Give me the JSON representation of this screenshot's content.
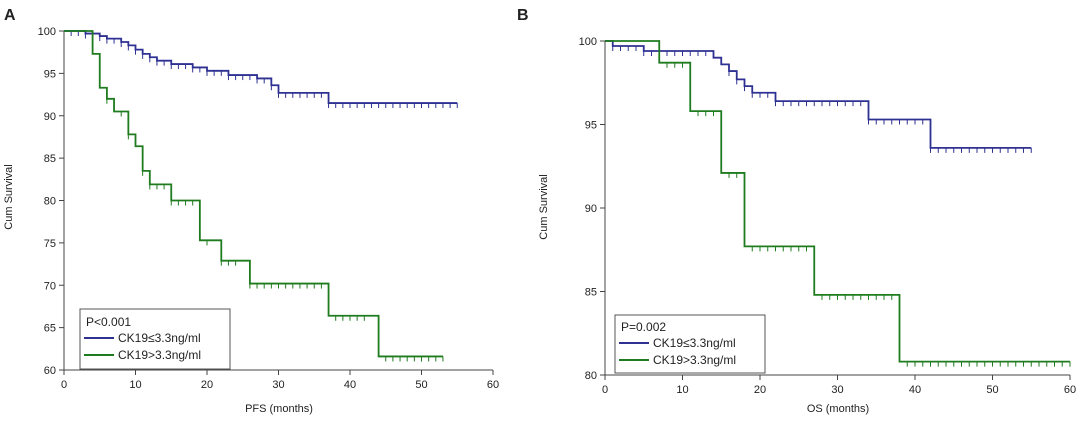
{
  "chart_data": [
    {
      "panel": "A",
      "type": "line",
      "title": "",
      "xlabel": "PFS (months)",
      "ylabel": "Cum Survival",
      "xlim": [
        0,
        60
      ],
      "ylim": [
        60,
        100
      ],
      "xticks": [
        0,
        10,
        20,
        30,
        40,
        50,
        60
      ],
      "yticks": [
        60,
        65,
        70,
        75,
        80,
        85,
        90,
        95,
        100
      ],
      "grid": false,
      "legend": {
        "placement": "bottom-left",
        "title": "P<0.001",
        "entries": [
          "CK19≤3.3ng/ml",
          "CK19>3.3ng/ml"
        ]
      },
      "series": [
        {
          "name": "CK19≤3.3ng/ml",
          "color": "#2e3192",
          "steps": [
            [
              0,
              100
            ],
            [
              3,
              99.7
            ],
            [
              5,
              99.4
            ],
            [
              6,
              99.1
            ],
            [
              8,
              98.7
            ],
            [
              9,
              98.3
            ],
            [
              10,
              97.8
            ],
            [
              11,
              97.3
            ],
            [
              12,
              96.9
            ],
            [
              13,
              96.5
            ],
            [
              15,
              96.1
            ],
            [
              18,
              95.7
            ],
            [
              20,
              95.3
            ],
            [
              23,
              94.8
            ],
            [
              27,
              94.4
            ],
            [
              29,
              93.6
            ],
            [
              30,
              92.7
            ],
            [
              37,
              91.5
            ],
            [
              55,
              91.5
            ]
          ],
          "censor_x": [
            1,
            2,
            3,
            4,
            5,
            6,
            7,
            8,
            9,
            10,
            11,
            12,
            13,
            14,
            15,
            16,
            17,
            18,
            19,
            20,
            21,
            22,
            23,
            24,
            25,
            26,
            27,
            28,
            29,
            30,
            31,
            32,
            33,
            34,
            35,
            36,
            37,
            38,
            39,
            40,
            41,
            42,
            43,
            44,
            45,
            46,
            47,
            48,
            49,
            50,
            51,
            52,
            53,
            54,
            55
          ]
        },
        {
          "name": "CK19>3.3ng/ml",
          "color": "#1e7b1e",
          "steps": [
            [
              0,
              100
            ],
            [
              4,
              97.3
            ],
            [
              5,
              93.3
            ],
            [
              6,
              92.0
            ],
            [
              7,
              90.5
            ],
            [
              9,
              87.8
            ],
            [
              10,
              86.4
            ],
            [
              11,
              83.5
            ],
            [
              12,
              81.9
            ],
            [
              15,
              80.0
            ],
            [
              19,
              75.3
            ],
            [
              22,
              72.9
            ],
            [
              26,
              70.2
            ],
            [
              37,
              66.4
            ],
            [
              44,
              61.6
            ],
            [
              53,
              61.6
            ]
          ],
          "censor_x": [
            6,
            8,
            9,
            11,
            12,
            13,
            14,
            15,
            16,
            17,
            18,
            20,
            22,
            23,
            24,
            26,
            27,
            28,
            29,
            30,
            31,
            32,
            33,
            34,
            35,
            36,
            38,
            39,
            40,
            41,
            42,
            45,
            46,
            47,
            48,
            49,
            50,
            51,
            52,
            53
          ]
        }
      ]
    },
    {
      "panel": "B",
      "type": "line",
      "title": "",
      "xlabel": "OS (months)",
      "ylabel": "Cum Survival",
      "xlim": [
        0,
        60
      ],
      "ylim": [
        80,
        100
      ],
      "xticks": [
        0,
        10,
        20,
        30,
        40,
        50,
        60
      ],
      "yticks": [
        80,
        85,
        90,
        95,
        100
      ],
      "grid": false,
      "legend": {
        "placement": "bottom-left",
        "title": "P=0.002",
        "entries": [
          "CK19≤3.3ng/ml",
          "CK19>3.3ng/ml"
        ]
      },
      "series": [
        {
          "name": "CK19≤3.3ng/ml",
          "color": "#2e3192",
          "steps": [
            [
              0,
              100
            ],
            [
              1,
              99.7
            ],
            [
              5,
              99.4
            ],
            [
              14,
              99.0
            ],
            [
              15,
              98.6
            ],
            [
              16,
              98.2
            ],
            [
              17,
              97.7
            ],
            [
              18,
              97.3
            ],
            [
              19,
              96.9
            ],
            [
              22,
              96.4
            ],
            [
              34,
              95.3
            ],
            [
              42,
              93.6
            ],
            [
              55,
              93.6
            ]
          ],
          "censor_x": [
            1,
            2,
            3,
            4,
            5,
            6,
            7,
            8,
            9,
            10,
            11,
            12,
            13,
            16,
            17,
            18,
            19,
            20,
            21,
            22,
            23,
            24,
            25,
            26,
            27,
            28,
            29,
            30,
            31,
            32,
            33,
            34,
            35,
            36,
            37,
            38,
            39,
            40,
            41,
            42,
            43,
            44,
            45,
            46,
            47,
            48,
            49,
            50,
            51,
            52,
            53,
            54,
            55
          ]
        },
        {
          "name": "CK19>3.3ng/ml",
          "color": "#1e7b1e",
          "steps": [
            [
              0,
              100
            ],
            [
              7,
              98.7
            ],
            [
              11,
              95.8
            ],
            [
              15,
              92.1
            ],
            [
              18,
              87.7
            ],
            [
              27,
              84.8
            ],
            [
              38,
              80.8
            ],
            [
              60,
              80.8
            ]
          ],
          "censor_x": [
            8,
            9,
            10,
            12,
            13,
            14,
            16,
            17,
            19,
            20,
            21,
            22,
            23,
            24,
            25,
            26,
            28,
            29,
            30,
            31,
            32,
            33,
            34,
            35,
            36,
            37,
            39,
            40,
            41,
            42,
            43,
            44,
            45,
            46,
            47,
            48,
            49,
            50,
            51,
            52,
            53,
            54,
            55,
            56,
            57,
            58,
            59,
            60
          ]
        }
      ]
    }
  ]
}
